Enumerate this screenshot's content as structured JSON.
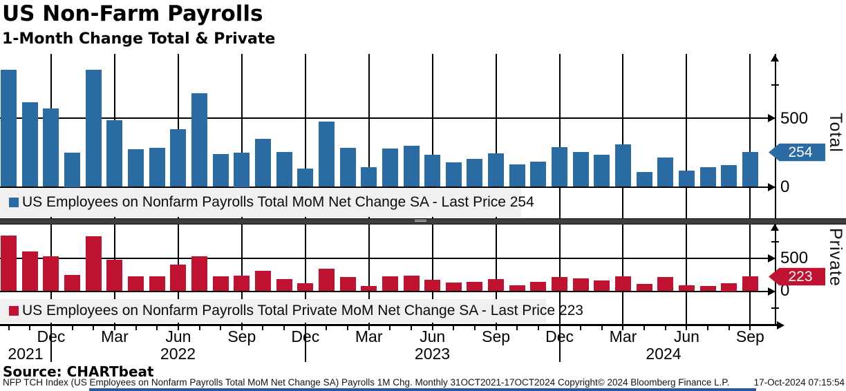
{
  "title": "US Non-Farm Payrolls",
  "subtitle": "1-Month Change Total & Private",
  "accent_colors": {
    "total_blue": "#2a6ba4",
    "private_red": "#c01331",
    "legend_bg": "#f0f0f0",
    "separator": "#3e3e3e"
  },
  "panels": {
    "total": {
      "axis_title": "Total",
      "legend": "US Employees on Nonfarm Payrolls Total MoM Net Change SA - Last Price 254",
      "last_price": "254",
      "tick_500": "500",
      "tick_0": "0"
    },
    "private": {
      "axis_title": "Private",
      "legend": "US Employees on Nonfarm Payrolls Total Private MoM Net Change SA - Last Price 223",
      "last_price": "223",
      "tick_500": "500",
      "tick_0": "0"
    }
  },
  "x_axis": {
    "quarter_labels": [
      "Dec",
      "Mar",
      "Jun",
      "Sep",
      "Dec",
      "Mar",
      "Jun",
      "Sep",
      "Dec",
      "Mar",
      "Jun",
      "Sep"
    ],
    "year_labels": [
      "2021",
      "2022",
      "2023",
      "2024"
    ]
  },
  "footer": {
    "source": "Source: CHARTbeat",
    "description": "NFP TCH Index (US Employees on Nonfarm Payrolls Total MoM Net Change SA) Payrolls 1M Chg.  Monthly 31OCT2021-17OCT2024",
    "copyright": "Copyright© 2024 Bloomberg Finance L.P.",
    "timestamp": "17-Oct-2024 07:15:54"
  },
  "chart_data": [
    {
      "type": "bar",
      "title": "US Employees on Nonfarm Payrolls Total MoM Net Change SA",
      "panel": "Total",
      "unit": "thousands",
      "ylabel": "Total",
      "ylim": [
        0,
        1000
      ],
      "y_ticks_labeled": [
        0,
        500
      ],
      "grid": true,
      "last_price": 254,
      "x": [
        "Oct 2021",
        "Nov 2021",
        "Dec 2021",
        "Jan 2022",
        "Feb 2022",
        "Mar 2022",
        "Apr 2022",
        "May 2022",
        "Jun 2022",
        "Jul 2022",
        "Aug 2022",
        "Sep 2022",
        "Oct 2022",
        "Nov 2022",
        "Dec 2022",
        "Jan 2023",
        "Feb 2023",
        "Mar 2023",
        "Apr 2023",
        "May 2023",
        "Jun 2023",
        "Jul 2023",
        "Aug 2023",
        "Sep 2023",
        "Oct 2023",
        "Nov 2023",
        "Dec 2023",
        "Jan 2024",
        "Feb 2024",
        "Mar 2024",
        "Apr 2024",
        "May 2024",
        "Jun 2024",
        "Jul 2024",
        "Aug 2024",
        "Sep 2024"
      ],
      "values": [
        852,
        614,
        568,
        250,
        850,
        485,
        275,
        285,
        420,
        680,
        240,
        250,
        350,
        255,
        135,
        475,
        285,
        145,
        280,
        300,
        235,
        180,
        205,
        245,
        165,
        185,
        290,
        256,
        236,
        310,
        108,
        216,
        118,
        144,
        159,
        254
      ],
      "color": "#2a6ba4"
    },
    {
      "type": "bar",
      "title": "US Employees on Nonfarm Payrolls Total Private MoM Net Change SA",
      "panel": "Private",
      "unit": "thousands",
      "ylabel": "Private",
      "ylim": [
        -250,
        1000
      ],
      "y_ticks_labeled": [
        0,
        500
      ],
      "grid": true,
      "last_price": 223,
      "x": [
        "Oct 2021",
        "Nov 2021",
        "Dec 2021",
        "Jan 2022",
        "Feb 2022",
        "Mar 2022",
        "Apr 2022",
        "May 2022",
        "Jun 2022",
        "Jul 2022",
        "Aug 2022",
        "Sep 2022",
        "Oct 2022",
        "Nov 2022",
        "Dec 2022",
        "Jan 2023",
        "Feb 2023",
        "Mar 2023",
        "Apr 2023",
        "May 2023",
        "Jun 2023",
        "Jul 2023",
        "Aug 2023",
        "Sep 2023",
        "Oct 2023",
        "Nov 2023",
        "Dec 2023",
        "Jan 2024",
        "Feb 2024",
        "Mar 2024",
        "Apr 2024",
        "May 2024",
        "Jun 2024",
        "Jul 2024",
        "Aug 2024",
        "Sep 2024"
      ],
      "values": [
        840,
        600,
        530,
        245,
        830,
        475,
        225,
        230,
        405,
        530,
        225,
        235,
        310,
        180,
        120,
        340,
        215,
        75,
        220,
        240,
        170,
        130,
        140,
        185,
        85,
        140,
        210,
        190,
        165,
        230,
        107,
        210,
        86,
        83,
        125,
        223
      ],
      "color": "#c01331"
    }
  ]
}
